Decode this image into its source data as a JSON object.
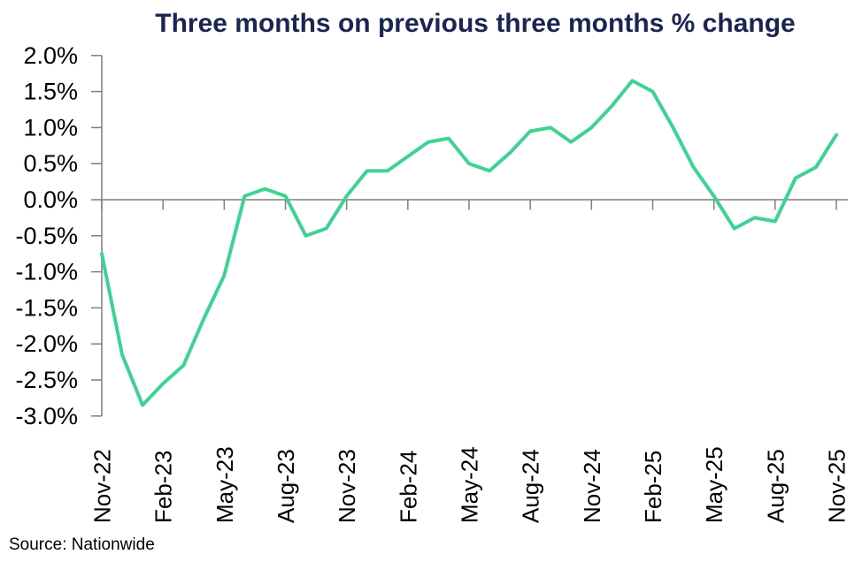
{
  "title": "Three months on previous three months % change",
  "source": "Source: Nationwide",
  "colors": {
    "line": "#3ed392",
    "title": "#1a2551",
    "axis": "#7f7f7f",
    "labels": "#000000"
  },
  "chart_data": {
    "type": "line",
    "title": "Three months on previous three months % change",
    "source": "Source: Nationwide",
    "x": [
      "Nov-22",
      "Dec-22",
      "Jan-23",
      "Feb-23",
      "Mar-23",
      "Apr-23",
      "May-23",
      "Jun-23",
      "Jul-23",
      "Aug-23",
      "Sep-23",
      "Oct-23",
      "Nov-23",
      "Dec-23",
      "Jan-24",
      "Feb-24",
      "Mar-24",
      "Apr-24",
      "May-24",
      "Jun-24",
      "Jul-24",
      "Aug-24",
      "Sep-24",
      "Oct-24",
      "Nov-24",
      "Dec-24",
      "Jan-25",
      "Feb-25",
      "Mar-25",
      "Apr-25",
      "May-25",
      "Jun-25",
      "Jul-25",
      "Aug-25",
      "Sep-25",
      "Oct-25",
      "Nov-25"
    ],
    "values": [
      -0.75,
      -2.15,
      -2.85,
      -2.55,
      -2.3,
      -1.65,
      -1.05,
      0.05,
      0.15,
      0.05,
      -0.5,
      -0.4,
      0.05,
      0.4,
      0.4,
      0.6,
      0.8,
      0.85,
      0.5,
      0.4,
      0.65,
      0.95,
      1.0,
      0.8,
      1.0,
      1.3,
      1.65,
      1.5,
      1.0,
      0.45,
      0.05,
      -0.4,
      -0.25,
      -0.3,
      0.3,
      0.45,
      0.9
    ],
    "x_tick_labels": [
      "Nov-22",
      "Feb-23",
      "May-23",
      "Aug-23",
      "Nov-23",
      "Feb-24",
      "May-24",
      "Aug-24",
      "Nov-24",
      "Feb-25",
      "May-25",
      "Aug-25",
      "Nov-25"
    ],
    "x_tick_step": 3,
    "y_ticks": [
      "2.0%",
      "1.5%",
      "1.0%",
      "0.5%",
      "0.0%",
      "-0.5%",
      "-1.0%",
      "-1.5%",
      "-2.0%",
      "-2.5%",
      "-3.0%"
    ],
    "ylim": [
      -3.0,
      2.0
    ],
    "y_unit": "%",
    "grid": "zero-line-only",
    "legend": "none"
  }
}
